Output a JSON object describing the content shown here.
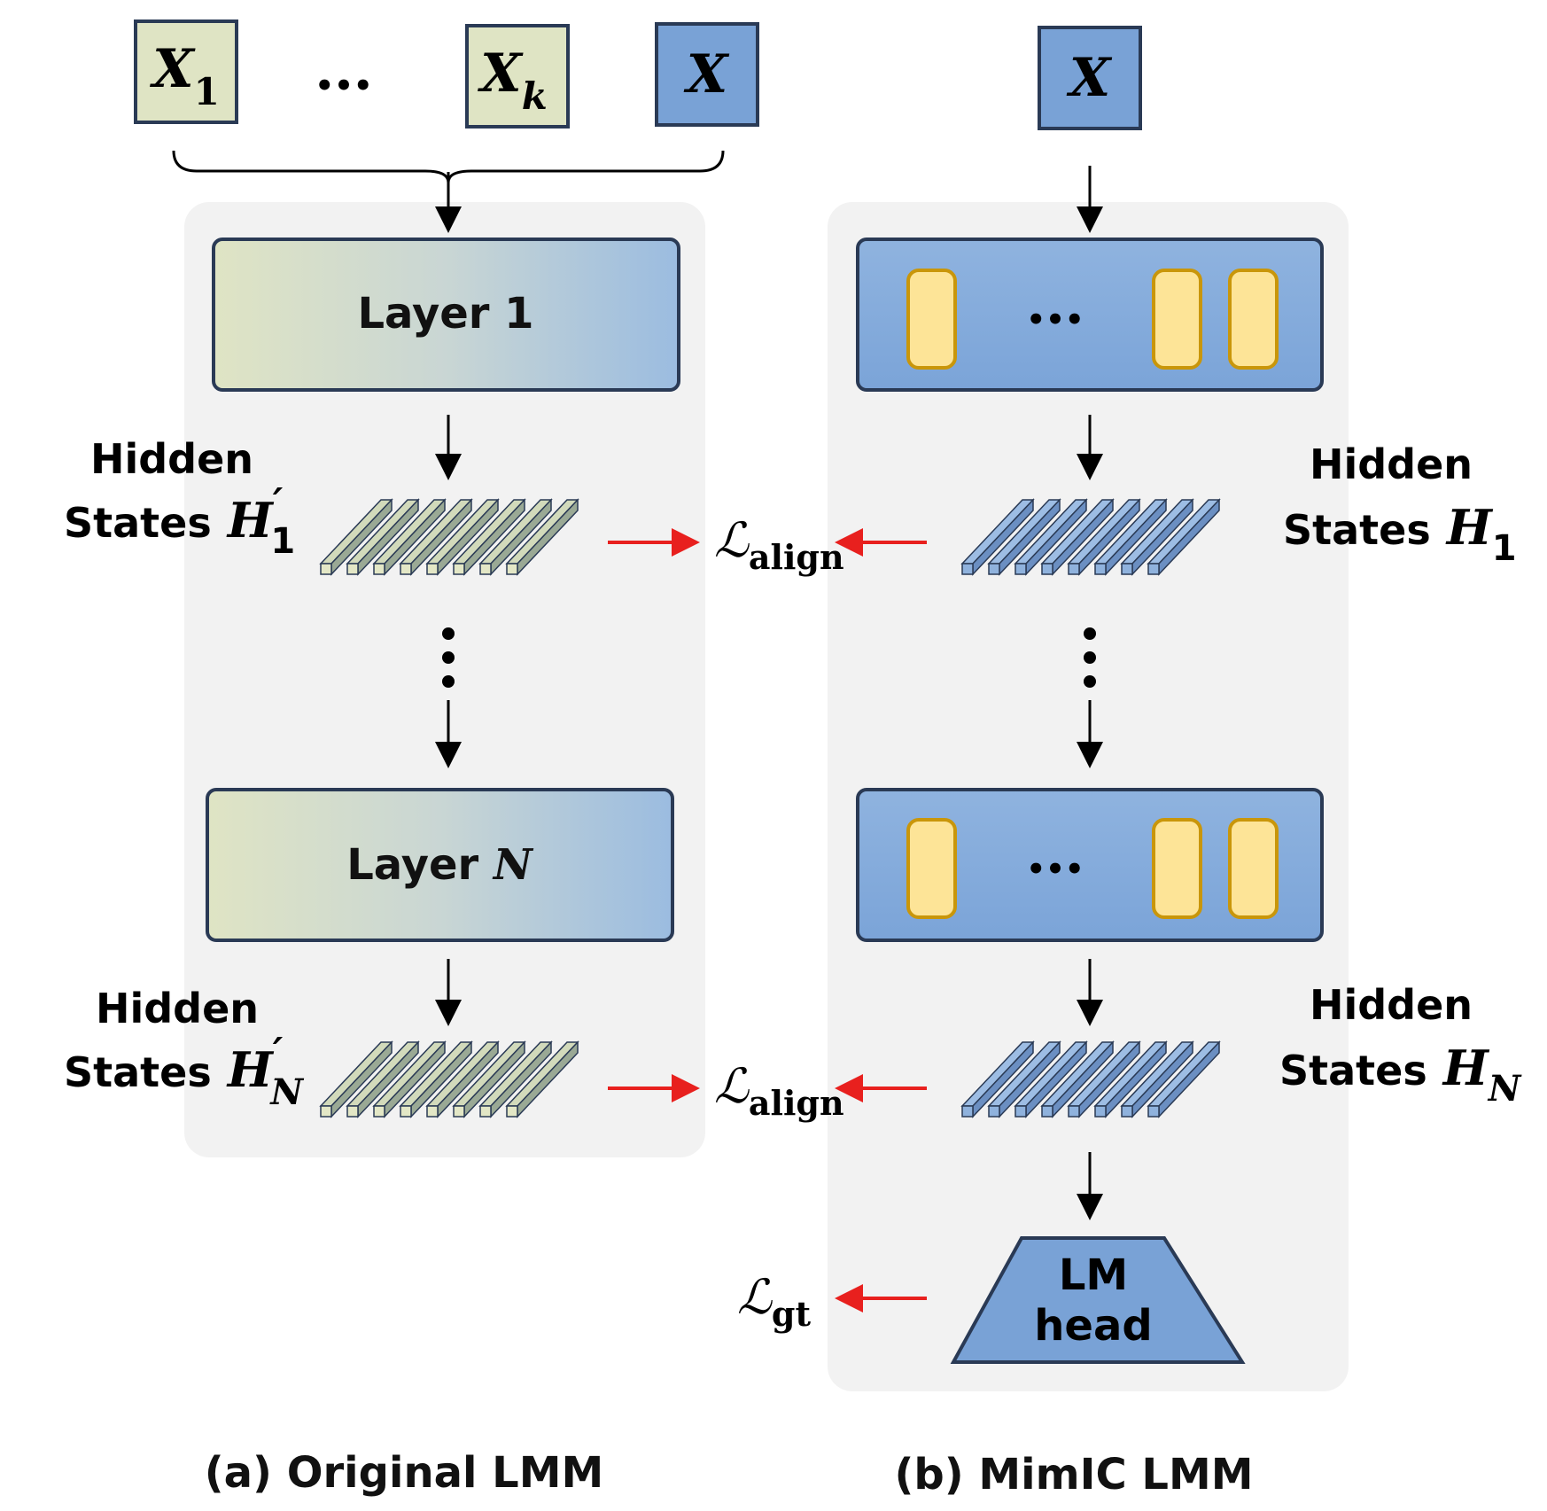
{
  "inputs": {
    "left": [
      {
        "sym": "X",
        "sub": "1"
      },
      {
        "sym": "X",
        "sub": "k"
      },
      {
        "sym": "X",
        "sub": ""
      }
    ],
    "ellipsis": "•••",
    "right": {
      "sym": "X",
      "sub": ""
    }
  },
  "left_model": {
    "layer1": {
      "text": "Layer 1"
    },
    "layerN": {
      "text": "Layer ",
      "var": "N"
    },
    "h1_label": {
      "line1": "Hidden",
      "line2": "States",
      "sym": "H",
      "prime": "′",
      "sub": "1"
    },
    "hN_label": {
      "line1": "Hidden",
      "line2": "States",
      "sym": "H",
      "prime": "′",
      "sub": "N"
    },
    "caption": "(a) Original LMM"
  },
  "right_model": {
    "block_ellipsis": "•••",
    "h1_label": {
      "line1": "Hidden",
      "line2": "States",
      "sym": "H",
      "sub": "1"
    },
    "hN_label": {
      "line1": "Hidden",
      "line2": "States",
      "sym": "H",
      "sub": "N"
    },
    "lm_head": {
      "line1": "LM",
      "line2": "head"
    },
    "caption": "(b) MimIC LMM"
  },
  "losses": {
    "align_symbol": "ℒ",
    "align_sub": "align",
    "gt_symbol": "ℒ",
    "gt_sub": "gt"
  },
  "colors": {
    "input_green": "#dfe4c4",
    "input_blue": "#79a2d6",
    "panel_bg": "#f2f2f2",
    "box_border": "#2a3a55",
    "adapter_fill": "#fde497",
    "adapter_border": "#c9960a",
    "loss_arrow": "#e8201e"
  }
}
